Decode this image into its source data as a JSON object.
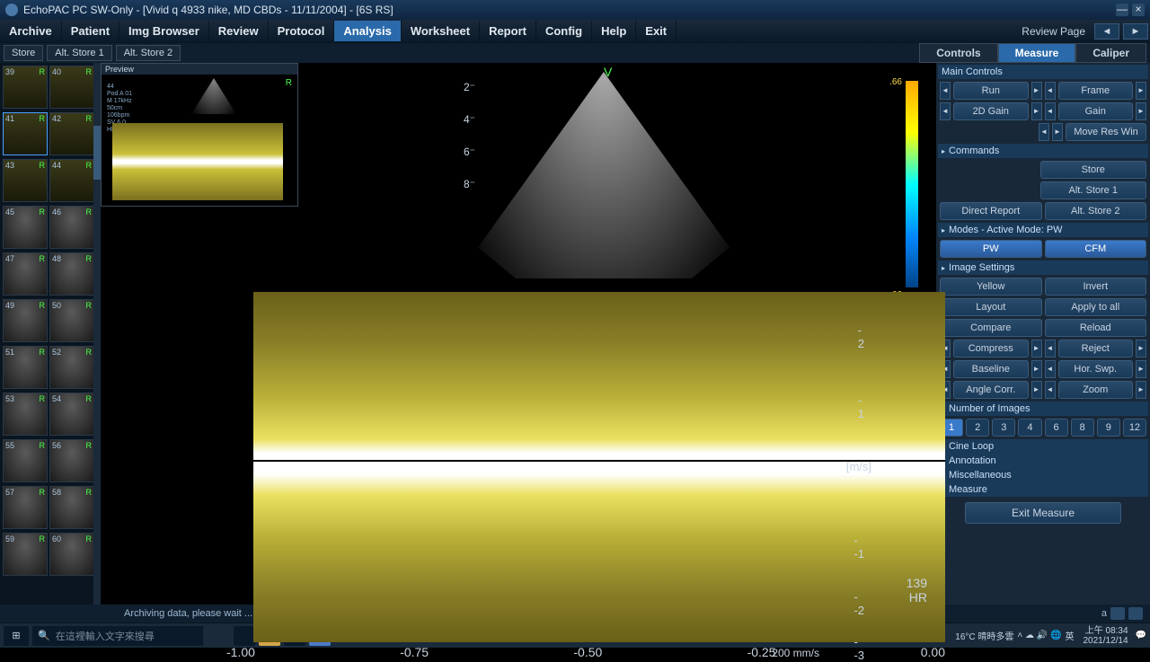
{
  "titlebar": {
    "title": "EchoPAC PC SW-Only - [Vivid q 4933 nike, MD CBDs - 11/11/2004] - [6S RS]"
  },
  "menu": {
    "items": [
      "Archive",
      "Patient",
      "Img Browser",
      "Review",
      "Protocol",
      "Analysis",
      "Worksheet",
      "Report",
      "Config",
      "Help",
      "Exit"
    ],
    "active": 5,
    "navlabel": "Review Page"
  },
  "toolbar": {
    "buttons": [
      "Store",
      "Alt. Store 1",
      "Alt. Store 2"
    ],
    "tabs": [
      "Controls",
      "Measure",
      "Caliper"
    ],
    "active_tab": 1
  },
  "thumbs": {
    "start": 39,
    "selected": 41,
    "gray_from": 45
  },
  "preview": {
    "header": "Preview",
    "info": "44\nPod A 01\nM 17kHz\n50cm\n106bpm\nSV 6.0\nHR 44.6",
    "r": "R"
  },
  "sector": {
    "v": "V",
    "depths": [
      "2",
      "4",
      "6",
      "8"
    ],
    "colorbar_top": ".66",
    "colorbar_bottom": "-.66"
  },
  "spectrum": {
    "yticks": [
      {
        "v": "2",
        "p": 9
      },
      {
        "v": "1",
        "p": 29
      },
      {
        "v": "-1",
        "p": 69
      },
      {
        "v": "-2",
        "p": 85
      },
      {
        "v": "-3",
        "p": 98
      }
    ],
    "yunit": "[m/s]",
    "xticks": [
      "-1.00",
      "-0.75",
      "-0.50",
      "-0.25",
      "0.00"
    ],
    "sweep": "200 mm/s",
    "hr_value": "139",
    "hr_label": "HR"
  },
  "side": {
    "main_controls": "Main Controls",
    "run": "Run",
    "frame": "Frame",
    "gain2d": "2D Gain",
    "gain": "Gain",
    "moveres": "Move Res Win",
    "commands": "Commands",
    "store": "Store",
    "alt1": "Alt. Store 1",
    "direct": "Direct Report",
    "alt2": "Alt. Store 2",
    "modes": "Modes - Active Mode: PW",
    "pw": "PW",
    "cfm": "CFM",
    "imgset": "Image Settings",
    "yellow": "Yellow",
    "invert": "Invert",
    "layout": "Layout",
    "applyall": "Apply to all",
    "compare": "Compare",
    "reload": "Reload",
    "compress": "Compress",
    "reject": "Reject",
    "baseline": "Baseline",
    "horswp": "Hor. Swp.",
    "anglecorr": "Angle Corr.",
    "zoom": "Zoom",
    "numimg": "Number of Images",
    "nums": [
      "1",
      "2",
      "3",
      "4",
      "6",
      "8",
      "9",
      "12"
    ],
    "num_active": 0,
    "cineloop": "Cine Loop",
    "annotation": "Annotation",
    "misc": "Miscellaneous",
    "measure": "Measure",
    "exit": "Exit Measure"
  },
  "status": {
    "msg": "Archiving data, please wait ...",
    "a": "a"
  },
  "taskbar": {
    "search_placeholder": "在這裡輸入文字來搜尋",
    "temp": "16°C 晴時多雲",
    "ime": "英",
    "time": "上午 08:34",
    "date": "2021/12/14"
  }
}
